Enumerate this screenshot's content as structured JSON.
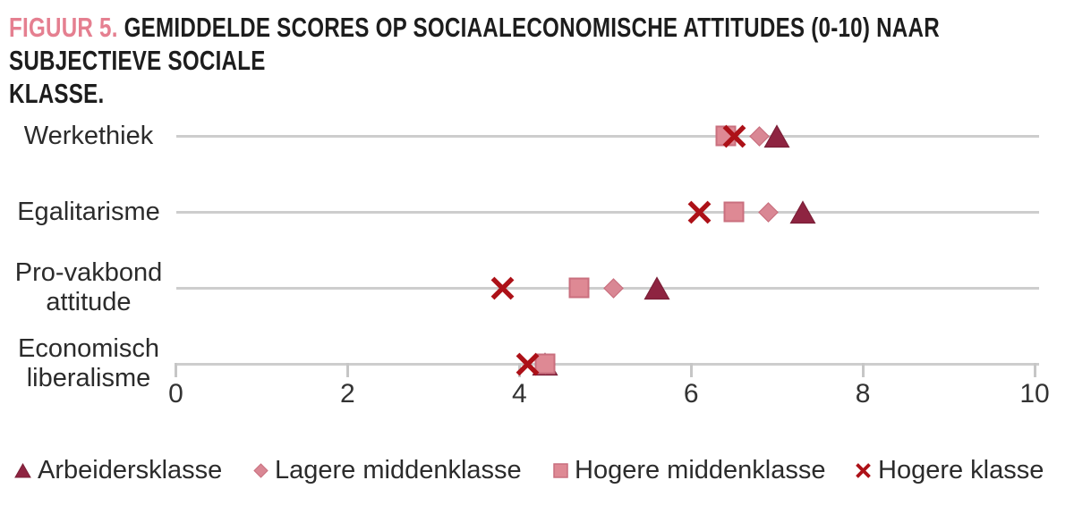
{
  "header": {
    "figure_label": "FIGUUR 5.",
    "title_line1": "GEMIDDELDE SCORES OP SOCIAALECONOMISCHE ATTITUDES (0-10) NAAR SUBJECTIEVE SOCIALE",
    "title_line2": "KLASSE.",
    "figure_label_color": "#e57f90"
  },
  "chart_data": {
    "type": "scatter",
    "title": "FIGUUR 5. Gemiddelde scores op sociaaleconomische attitudes (0-10) naar subjectieve sociale klasse.",
    "xlabel": "",
    "ylabel": "",
    "xlim": [
      0,
      10
    ],
    "x_ticks": [
      "0",
      "2",
      "4",
      "6",
      "8",
      "10"
    ],
    "x_tick_values": [
      0,
      2,
      4,
      6,
      8,
      10
    ],
    "grid": "horizontal-category-lines",
    "legend_position": "bottom",
    "categories": [
      "Werkethiek",
      "Egalitarisme",
      "Pro-vakbond attitude",
      "Economisch liberalisme"
    ],
    "category_label_lines": [
      [
        "Werkethiek"
      ],
      [
        "Egalitarisme"
      ],
      [
        "Pro-vakbond",
        "attitude"
      ],
      [
        "Economisch",
        "liberalisme"
      ]
    ],
    "series": [
      {
        "name": "Arbeidersklasse",
        "marker": "triangle",
        "color": "#8e2441",
        "border": "#7a1f37",
        "values": [
          7.0,
          7.3,
          5.6,
          4.3
        ]
      },
      {
        "name": "Lagere middenklasse",
        "marker": "diamond",
        "color": "#d98794",
        "border": "#c96f7e",
        "values": [
          6.8,
          6.9,
          5.1,
          4.3
        ]
      },
      {
        "name": "Hogere middenklasse",
        "marker": "square",
        "color": "#de8994",
        "border": "#c96f7e",
        "values": [
          6.4,
          6.5,
          4.7,
          4.3
        ]
      },
      {
        "name": "Hogere klasse",
        "marker": "x",
        "color": "#ad1118",
        "border": "#8c0e13",
        "values": [
          6.5,
          6.1,
          3.8,
          4.1
        ]
      }
    ],
    "colors": {
      "gridline": "#cdcdcd",
      "tick": "#c6c6c6",
      "text": "#2b2b2b"
    }
  }
}
